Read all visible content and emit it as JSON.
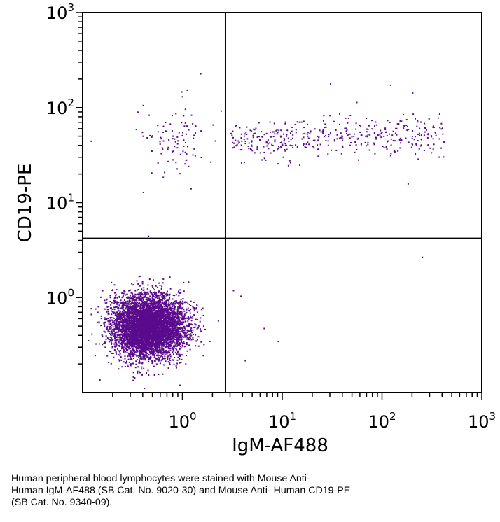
{
  "chart_data": {
    "type": "scatter",
    "xlabel": "IgM-AF488",
    "ylabel": "CD19-PE",
    "xscale": "log",
    "yscale": "log",
    "xlim": [
      0.1,
      1000
    ],
    "ylim": [
      0.1,
      1000
    ],
    "x_ticks": [
      {
        "value": 1,
        "base": "10",
        "exp": "0"
      },
      {
        "value": 10,
        "base": "10",
        "exp": "1"
      },
      {
        "value": 100,
        "base": "10",
        "exp": "2"
      },
      {
        "value": 1000,
        "base": "10",
        "exp": "3"
      }
    ],
    "y_ticks": [
      {
        "value": 1,
        "base": "10",
        "exp": "0"
      },
      {
        "value": 10,
        "base": "10",
        "exp": "1"
      },
      {
        "value": 100,
        "base": "10",
        "exp": "2"
      },
      {
        "value": 1000,
        "base": "10",
        "exp": "3"
      }
    ],
    "gates": {
      "x": 2.7,
      "y": 4.2
    },
    "point_color": "#5a0a8c",
    "grid": false,
    "populations": [
      {
        "quadrant": "lower-left (CD19- IgM-)",
        "center": [
          0.45,
          0.5
        ],
        "spread_decades": [
          0.18,
          0.16
        ],
        "approx_count": 6000
      },
      {
        "quadrant": "upper-right (CD19+ IgM+)",
        "x_range": [
          3,
          420
        ],
        "y_center": 48,
        "approx_count": 420
      },
      {
        "quadrant": "upper-left (CD19+ IgM-)",
        "center": [
          0.8,
          50
        ],
        "spread_decades": [
          0.15,
          0.18
        ],
        "approx_count": 95
      },
      {
        "quadrant": "lower-right (CD19- IgM+)",
        "approx_count": 8
      }
    ],
    "sample_points": [
      [
        1.5,
        230
      ],
      [
        1.1,
        155
      ],
      [
        30,
        180
      ],
      [
        55,
        115
      ],
      [
        120,
        175
      ],
      [
        200,
        145
      ],
      [
        180,
        16
      ],
      [
        250,
        2.7
      ],
      [
        3.2,
        1.2
      ],
      [
        3.8,
        1.05
      ],
      [
        6.5,
        0.48
      ],
      [
        9,
        0.35
      ],
      [
        4.2,
        0.22
      ],
      [
        0.45,
        4.5
      ],
      [
        0.4,
        13
      ],
      [
        0.12,
        45
      ]
    ]
  },
  "caption": {
    "line1": "Human peripheral blood lymphocytes were stained with Mouse Anti-",
    "line2": "Human IgM-AF488 (SB Cat. No. 9020-30) and Mouse Anti- Human CD19-PE",
    "line3": "(SB Cat. No. 9340-09)."
  }
}
